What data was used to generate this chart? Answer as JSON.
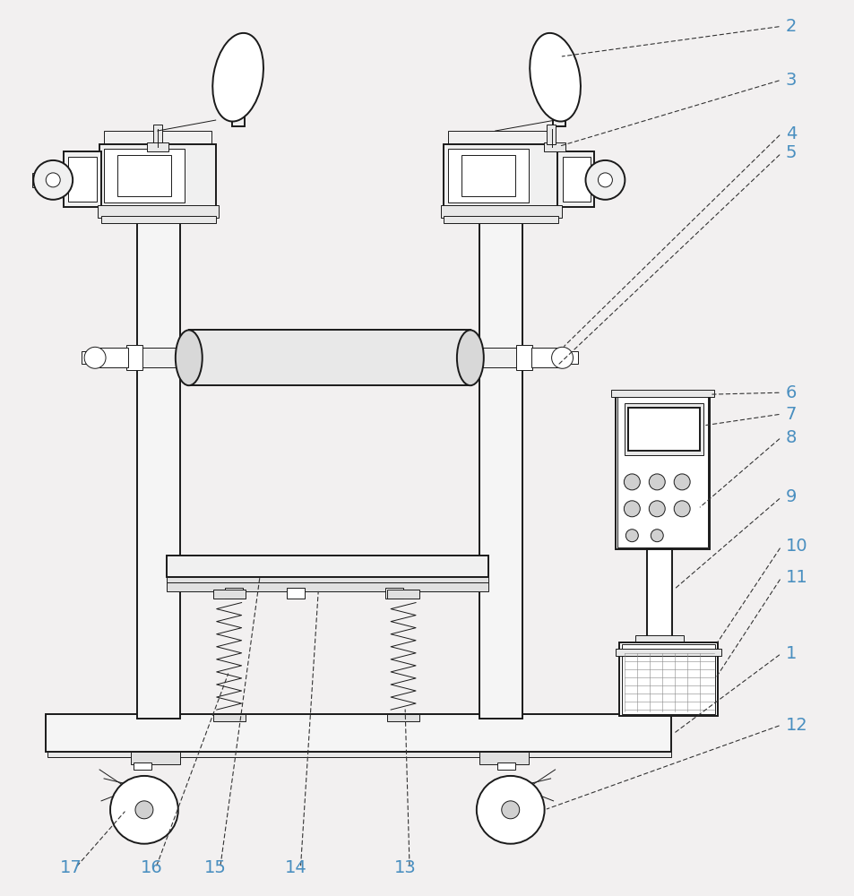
{
  "bg_color": "#f2f0f0",
  "line_color": "#1a1a1a",
  "label_color": "#4a8fc0",
  "arrow_color": "#333333",
  "lw_main": 1.4,
  "lw_thin": 0.7,
  "lw_med": 1.0,
  "fig_w": 9.54,
  "fig_h": 10.0,
  "dpi": 100
}
